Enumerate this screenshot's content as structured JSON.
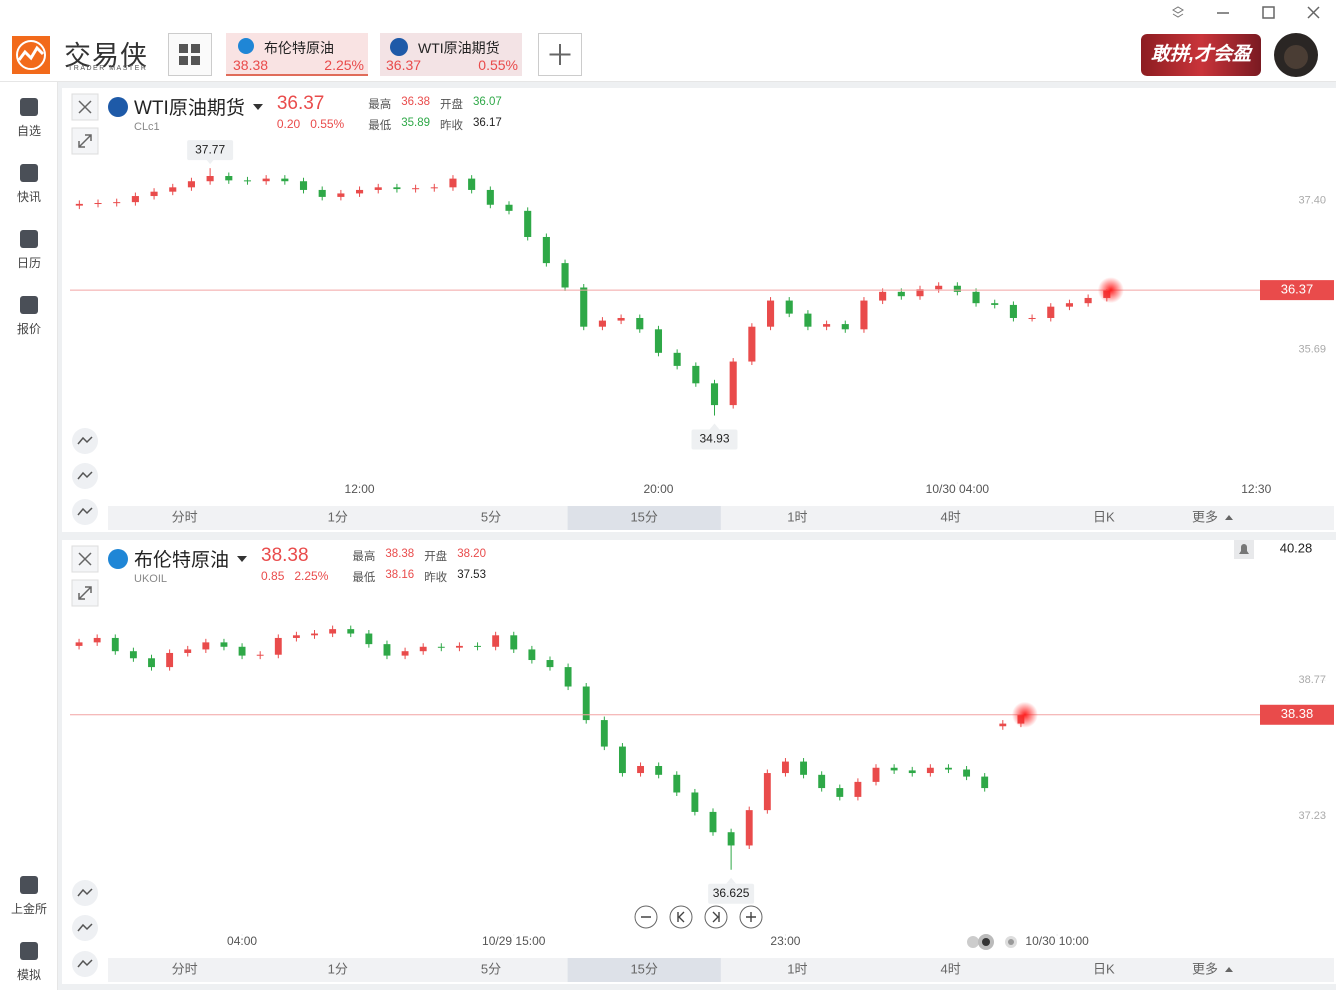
{
  "app": {
    "logo_cn": "交易侠",
    "logo_en": "TRADER MASTER",
    "banner": "敢拼,才会盈"
  },
  "tabs": [
    {
      "name": "布伦特原油",
      "price": 38.38,
      "change": "2.25%"
    },
    {
      "name": "WTI原油期货",
      "price": 36.37,
      "change": "0.55%"
    }
  ],
  "sidebar": [
    "自选",
    "快讯",
    "日历",
    "报价"
  ],
  "sidebar_bottom": [
    "上金所",
    "模拟"
  ],
  "timeframes": [
    "分时",
    "1分",
    "5分",
    "15分",
    "1时",
    "4时",
    "日K",
    "更多"
  ],
  "chart_data": [
    {
      "type": "candlestick",
      "title": "WTI原油期货",
      "code": "CLc1",
      "price": 36.37,
      "change": "0.20",
      "change_pct": "0.55%",
      "stats": [
        {
          "label": "最高",
          "value": "36.38"
        },
        {
          "label": "开盘",
          "value": "36.07"
        },
        {
          "label": "最低",
          "value": "35.89"
        },
        {
          "label": "昨收",
          "value": "36.17"
        }
      ],
      "up_color": "#e94b4b",
      "down_color": "#2ea847",
      "show_high_label": true,
      "ylim": [
        34.19,
        38.61
      ],
      "yticks": [
        {
          "value": 37.4,
          "label": "37.40"
        },
        35.69
      ],
      "xlim": [
        -0.5,
        63.2
      ],
      "xticks": [
        {
          "value": 15,
          "label": "12:00"
        },
        {
          "value": 31,
          "label": "20:00"
        },
        {
          "value": 47,
          "label": "10/30 04:00"
        },
        {
          "value": 63,
          "label": "12:30"
        }
      ],
      "candles": [
        [
          37.34,
          37.4,
          37.3,
          37.36
        ],
        [
          37.36,
          37.41,
          37.32,
          37.37
        ],
        [
          37.37,
          37.42,
          37.33,
          37.38
        ],
        [
          37.38,
          37.49,
          37.34,
          37.45
        ],
        [
          37.45,
          37.54,
          37.41,
          37.5
        ],
        [
          37.5,
          37.59,
          37.46,
          37.55
        ],
        [
          37.55,
          37.66,
          37.51,
          37.62
        ],
        [
          37.62,
          37.77,
          37.58,
          37.68
        ],
        [
          37.68,
          37.72,
          37.59,
          37.63
        ],
        [
          37.63,
          37.67,
          37.58,
          37.62
        ],
        [
          37.62,
          37.69,
          37.58,
          37.65
        ],
        [
          37.65,
          37.69,
          37.58,
          37.62
        ],
        [
          37.62,
          37.66,
          37.48,
          37.52
        ],
        [
          37.52,
          37.56,
          37.4,
          37.44
        ],
        [
          37.44,
          37.52,
          37.4,
          37.48
        ],
        [
          37.48,
          37.56,
          37.44,
          37.52
        ],
        [
          37.52,
          37.59,
          37.48,
          37.55
        ],
        [
          37.55,
          37.59,
          37.49,
          37.53
        ],
        [
          37.53,
          37.58,
          37.49,
          37.54
        ],
        [
          37.54,
          37.59,
          37.5,
          37.55
        ],
        [
          37.55,
          37.69,
          37.51,
          37.65
        ],
        [
          37.65,
          37.69,
          37.48,
          37.52
        ],
        [
          37.52,
          37.56,
          37.31,
          37.35
        ],
        [
          37.35,
          37.39,
          37.24,
          37.28
        ],
        [
          37.28,
          37.32,
          36.94,
          36.98
        ],
        [
          36.98,
          37.02,
          36.64,
          36.68
        ],
        [
          36.68,
          36.72,
          36.36,
          36.4
        ],
        [
          36.4,
          36.44,
          35.91,
          35.95
        ],
        [
          35.95,
          36.06,
          35.91,
          36.02
        ],
        [
          36.02,
          36.09,
          35.98,
          36.05
        ],
        [
          36.05,
          36.09,
          35.88,
          35.92
        ],
        [
          35.92,
          35.96,
          35.61,
          35.65
        ],
        [
          35.65,
          35.69,
          35.46,
          35.5
        ],
        [
          35.5,
          35.54,
          35.26,
          35.3
        ],
        [
          35.3,
          35.34,
          34.93,
          35.05
        ],
        [
          35.05,
          35.59,
          35.01,
          35.55
        ],
        [
          35.55,
          35.99,
          35.51,
          35.95
        ],
        [
          35.95,
          36.29,
          35.91,
          36.25
        ],
        [
          36.25,
          36.29,
          36.06,
          36.1
        ],
        [
          36.1,
          36.14,
          35.91,
          35.95
        ],
        [
          35.95,
          36.02,
          35.91,
          35.98
        ],
        [
          35.98,
          36.02,
          35.88,
          35.92
        ],
        [
          35.92,
          36.29,
          35.88,
          36.25
        ],
        [
          36.25,
          36.39,
          36.21,
          36.35
        ],
        [
          36.35,
          36.39,
          36.26,
          36.3
        ],
        [
          36.3,
          36.42,
          36.26,
          36.38
        ],
        [
          36.38,
          36.46,
          36.34,
          36.42
        ],
        [
          36.42,
          36.46,
          36.31,
          36.35
        ],
        [
          36.35,
          36.39,
          36.18,
          36.22
        ],
        [
          36.22,
          36.26,
          36.16,
          36.2
        ],
        [
          36.2,
          36.24,
          36.01,
          36.05
        ],
        [
          36.05,
          36.09,
          36.01,
          36.05
        ],
        [
          36.05,
          36.22,
          36.01,
          36.18
        ],
        [
          36.18,
          36.26,
          36.14,
          36.22
        ],
        [
          36.22,
          36.32,
          36.18,
          36.28
        ],
        [
          36.28,
          36.38,
          36.24,
          36.37
        ]
      ]
    },
    {
      "type": "candlestick",
      "title": "布伦特原油",
      "code": "UKOIL",
      "price": 38.38,
      "change": "0.85",
      "change_pct": "2.25%",
      "stats": [
        {
          "label": "最高",
          "value": "38.38"
        },
        {
          "label": "开盘",
          "value": "38.20"
        },
        {
          "label": "最低",
          "value": "38.16"
        },
        {
          "label": "昨收",
          "value": "37.53"
        }
      ],
      "up_color": "#e94b4b",
      "down_color": "#2ea847",
      "show_high_label": false,
      "alert": 40.28,
      "ylim": [
        35.92,
        40.28
      ],
      "yticks": [
        38.77,
        37.23
      ],
      "xlim": [
        -0.5,
        65.2
      ],
      "xticks": [
        {
          "value": 9,
          "label": "04:00"
        },
        {
          "value": 24,
          "label": "10/29 15:00"
        },
        {
          "value": 39,
          "label": "23:00"
        },
        {
          "value": 54,
          "label": "10/30 10:00"
        }
      ],
      "candles": [
        [
          39.16,
          39.24,
          39.12,
          39.2
        ],
        [
          39.2,
          39.29,
          39.16,
          39.25
        ],
        [
          39.25,
          39.29,
          39.06,
          39.1
        ],
        [
          39.1,
          39.14,
          38.98,
          39.02
        ],
        [
          39.02,
          39.06,
          38.88,
          38.92
        ],
        [
          38.92,
          39.12,
          38.88,
          39.08
        ],
        [
          39.08,
          39.16,
          39.04,
          39.12
        ],
        [
          39.12,
          39.24,
          39.08,
          39.2
        ],
        [
          39.2,
          39.24,
          39.11,
          39.15
        ],
        [
          39.15,
          39.19,
          39.01,
          39.05
        ],
        [
          39.05,
          39.1,
          39.01,
          39.06
        ],
        [
          39.06,
          39.29,
          39.02,
          39.25
        ],
        [
          39.25,
          39.32,
          39.21,
          39.28
        ],
        [
          39.28,
          39.34,
          39.24,
          39.3
        ],
        [
          39.3,
          39.39,
          39.26,
          39.35
        ],
        [
          39.35,
          39.39,
          39.26,
          39.3
        ],
        [
          39.3,
          39.34,
          39.14,
          39.18
        ],
        [
          39.18,
          39.22,
          39.01,
          39.05
        ],
        [
          39.05,
          39.14,
          39.01,
          39.1
        ],
        [
          39.1,
          39.19,
          39.06,
          39.15
        ],
        [
          39.15,
          39.19,
          39.1,
          39.14
        ],
        [
          39.14,
          39.2,
          39.1,
          39.16
        ],
        [
          39.16,
          39.2,
          39.11,
          39.15
        ],
        [
          39.15,
          39.32,
          39.11,
          39.28
        ],
        [
          39.28,
          39.32,
          39.08,
          39.12
        ],
        [
          39.12,
          39.16,
          38.96,
          39.0
        ],
        [
          39.0,
          39.04,
          38.88,
          38.92
        ],
        [
          38.92,
          38.96,
          38.66,
          38.7
        ],
        [
          38.7,
          38.74,
          38.28,
          38.32
        ],
        [
          38.32,
          38.36,
          37.98,
          38.02
        ],
        [
          38.02,
          38.06,
          37.68,
          37.72
        ],
        [
          37.72,
          37.84,
          37.68,
          37.8
        ],
        [
          37.8,
          37.84,
          37.66,
          37.7
        ],
        [
          37.7,
          37.74,
          37.46,
          37.5
        ],
        [
          37.5,
          37.54,
          37.24,
          37.28
        ],
        [
          37.28,
          37.32,
          37.01,
          37.05
        ],
        [
          37.05,
          37.09,
          36.625,
          36.9
        ],
        [
          36.9,
          37.34,
          36.86,
          37.3
        ],
        [
          37.3,
          37.76,
          37.26,
          37.72
        ],
        [
          37.72,
          37.89,
          37.68,
          37.85
        ],
        [
          37.85,
          37.89,
          37.66,
          37.7
        ],
        [
          37.7,
          37.74,
          37.51,
          37.55
        ],
        [
          37.55,
          37.59,
          37.41,
          37.45
        ],
        [
          37.45,
          37.66,
          37.41,
          37.62
        ],
        [
          37.62,
          37.82,
          37.58,
          37.78
        ],
        [
          37.78,
          37.82,
          37.71,
          37.75
        ],
        [
          37.75,
          37.79,
          37.68,
          37.72
        ],
        [
          37.72,
          37.82,
          37.68,
          37.78
        ],
        [
          37.78,
          37.82,
          37.72,
          37.76
        ],
        [
          37.76,
          37.8,
          37.64,
          37.68
        ],
        [
          37.68,
          37.72,
          37.51,
          37.55
        ],
        [
          38.25,
          38.32,
          38.21,
          38.28
        ],
        [
          38.28,
          38.38,
          38.24,
          38.38
        ]
      ]
    }
  ]
}
